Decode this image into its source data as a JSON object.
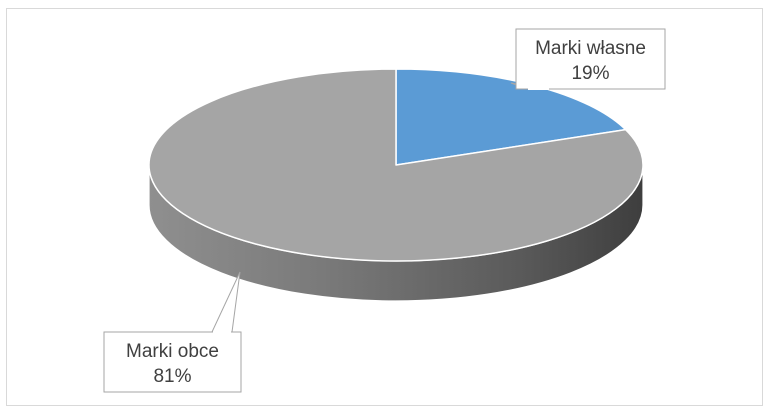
{
  "chart_data": {
    "type": "pie",
    "style": "3d",
    "title": "",
    "slices": [
      {
        "label": "Marki własne",
        "value": 19,
        "value_label": "19%",
        "color": "#5b9bd5"
      },
      {
        "label": "Marki obce",
        "value": 81,
        "value_label": "81%",
        "color": "#a5a5a5"
      }
    ],
    "data_labels": "callout",
    "legend": "none",
    "start_angle_deg": 0,
    "direction": "clockwise"
  }
}
